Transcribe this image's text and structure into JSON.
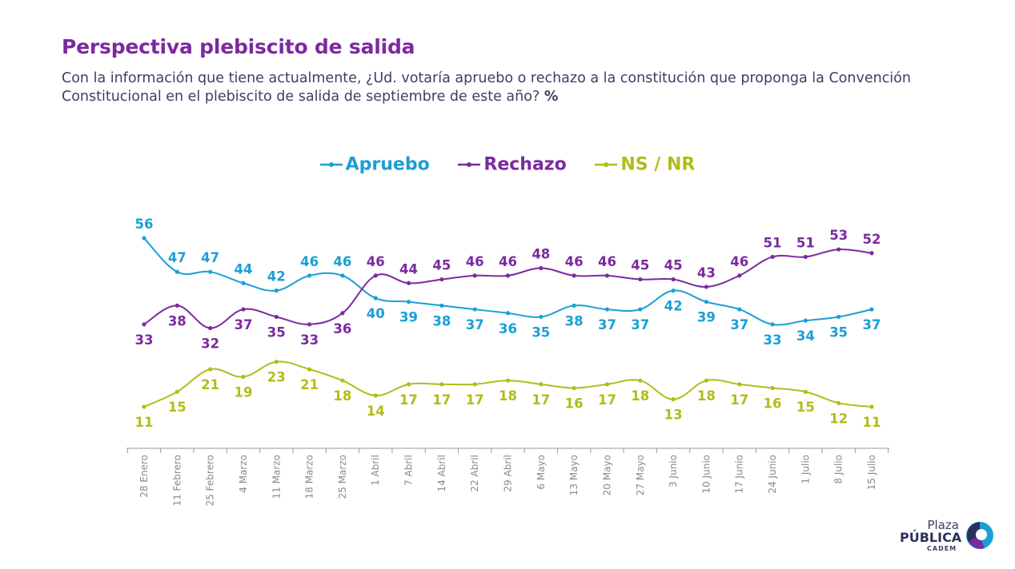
{
  "header": {
    "title": "Perspectiva plebiscito de salida",
    "question": "Con la información que tiene actualmente, ¿Ud. votaría apruebo o rechazo a la constitución que proponga la Convención Constitucional en el plebiscito de salida de septiembre de este año?",
    "unit": "%"
  },
  "legend": [
    "Apruebo",
    "Rechazo",
    "NS / NR"
  ],
  "logo": {
    "brand": "Plaza",
    "main": "PÚBLICA",
    "sub": "CADEM"
  },
  "colors": {
    "apruebo": "#1a9fd6",
    "rechazo": "#7b2a9e",
    "nsnr": "#b2bc18",
    "axis": "#9a9a9a",
    "text": "#3b3f66"
  },
  "chart_data": {
    "type": "line",
    "categories": [
      "28 Enero",
      "11 Febrero",
      "25 Febrero",
      "4 Marzo",
      "11 Marzo",
      "18 Marzo",
      "25 Marzo",
      "1 Abril",
      "7 Abril",
      "14 Abril",
      "22 Abril",
      "29 Abril",
      "6 Mayo",
      "13 Mayo",
      "20 Mayo",
      "27 Mayo",
      "3 Junio",
      "10 Junio",
      "17 Junio",
      "24 Junio",
      "1 Julio",
      "8 Julio",
      "15 Julio"
    ],
    "series": [
      {
        "name": "Apruebo",
        "color": "#1a9fd6",
        "label_position": [
          "above",
          "above",
          "above",
          "above",
          "above",
          "above",
          "above",
          "below",
          "below",
          "below",
          "below",
          "below",
          "below",
          "below",
          "below",
          "below",
          "below",
          "below",
          "below",
          "below",
          "below",
          "below",
          "below"
        ],
        "values": [
          56,
          47,
          47,
          44,
          42,
          46,
          46,
          40,
          39,
          38,
          37,
          36,
          35,
          38,
          37,
          37,
          42,
          39,
          37,
          33,
          34,
          35,
          37
        ]
      },
      {
        "name": "Rechazo",
        "color": "#7b2a9e",
        "label_position": [
          "below",
          "below",
          "below",
          "below",
          "below",
          "below",
          "below",
          "above",
          "above",
          "above",
          "above",
          "above",
          "above",
          "above",
          "above",
          "above",
          "above",
          "above",
          "above",
          "above",
          "above",
          "above",
          "above"
        ],
        "values": [
          33,
          38,
          32,
          37,
          35,
          33,
          36,
          46,
          44,
          45,
          46,
          46,
          48,
          46,
          46,
          45,
          45,
          43,
          46,
          51,
          51,
          53,
          52
        ]
      },
      {
        "name": "NS / NR",
        "color": "#b2bc18",
        "label_position": [
          "below",
          "below",
          "below",
          "below",
          "below",
          "below",
          "below",
          "below",
          "below",
          "below",
          "below",
          "below",
          "below",
          "below",
          "below",
          "below",
          "below",
          "below",
          "below",
          "below",
          "below",
          "below",
          "below"
        ],
        "values": [
          11,
          15,
          21,
          19,
          23,
          21,
          18,
          14,
          17,
          17,
          17,
          18,
          17,
          16,
          17,
          18,
          13,
          18,
          17,
          16,
          15,
          12,
          11
        ]
      }
    ],
    "ylim": [
      11,
      56
    ],
    "grid": false,
    "legend_position": "top-center"
  }
}
